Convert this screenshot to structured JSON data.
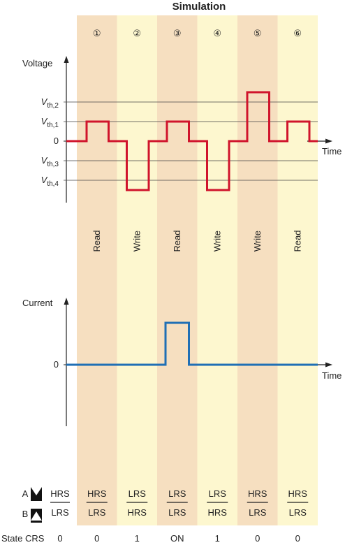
{
  "title": "Simulation",
  "voltage_axis_label": "Voltage",
  "current_axis_label": "Current",
  "time_label": "Time",
  "zero_label": "0",
  "thresholds": [
    {
      "id": "vth2",
      "base": "V",
      "sub": "th,2",
      "level": 2
    },
    {
      "id": "vth1",
      "base": "V",
      "sub": "th,1",
      "level": 1
    },
    {
      "id": "vth3",
      "base": "V",
      "sub": "th,3",
      "level": -1
    },
    {
      "id": "vth4",
      "base": "V",
      "sub": "th,4",
      "level": -2
    }
  ],
  "steps": [
    {
      "num": "①",
      "op": "Read",
      "voltage_level": 1,
      "current": 0,
      "top": "HRS",
      "bottom": "LRS",
      "crs_state": "0"
    },
    {
      "num": "②",
      "op": "Write",
      "voltage_level": -2.5,
      "current": 0,
      "top": "LRS",
      "bottom": "HRS",
      "crs_state": "1"
    },
    {
      "num": "③",
      "op": "Read",
      "voltage_level": 1,
      "current": 1,
      "top": "LRS",
      "bottom": "LRS",
      "crs_state": "ON"
    },
    {
      "num": "④",
      "op": "Write",
      "voltage_level": -2.5,
      "current": 0,
      "top": "LRS",
      "bottom": "HRS",
      "crs_state": "1"
    },
    {
      "num": "⑤",
      "op": "Write",
      "voltage_level": 2.5,
      "current": 0,
      "top": "HRS",
      "bottom": "LRS",
      "crs_state": "0"
    },
    {
      "num": "⑥",
      "op": "Read",
      "voltage_level": 1,
      "current": 0,
      "top": "HRS",
      "bottom": "LRS",
      "crs_state": "0"
    }
  ],
  "initial": {
    "top": "HRS",
    "bottom": "LRS",
    "crs_state": "0"
  },
  "device": {
    "a_label": "A",
    "b_label": "B"
  },
  "state_row_label": "State CRS",
  "colors": {
    "column_dark": "#f6dfc0",
    "column_light": "#fdf7cf",
    "voltage_trace": "#d0142c",
    "current_trace": "#1f6fb5",
    "axis": "#222222",
    "gridline": "#444444"
  }
}
